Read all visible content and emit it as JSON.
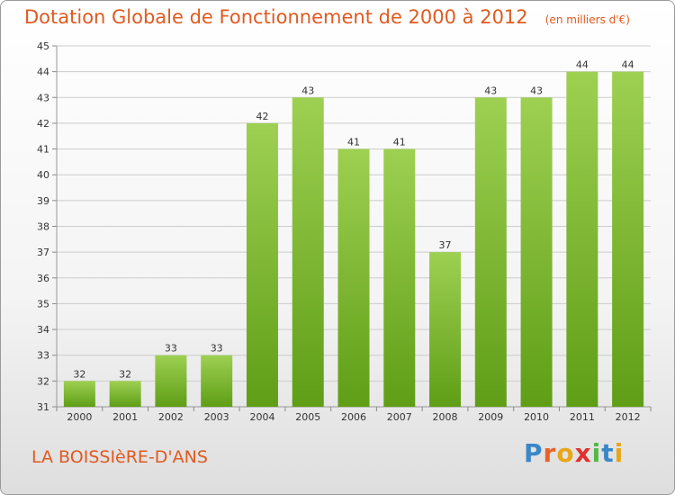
{
  "chart_data": {
    "type": "bar",
    "title": "Dotation Globale de Fonctionnement de 2000 à 2012",
    "unit_note": "(en milliers d'€)",
    "categories": [
      "2000",
      "2001",
      "2002",
      "2003",
      "2004",
      "2005",
      "2006",
      "2007",
      "2008",
      "2009",
      "2010",
      "2011",
      "2012"
    ],
    "values": [
      32,
      32,
      33,
      33,
      42,
      43,
      41,
      41,
      37,
      43,
      43,
      44,
      44
    ],
    "ylim": [
      31,
      45
    ],
    "yticks": [
      31,
      32,
      33,
      34,
      35,
      36,
      37,
      38,
      39,
      40,
      41,
      42,
      43,
      44,
      45
    ],
    "grid": true,
    "colors": {
      "bar_light": "#9ed052",
      "bar_dark": "#5f9e16",
      "grid": "#cccccc",
      "text": "#333333"
    }
  },
  "footer": {
    "commune": "LA BOISSIèRE-D'ANS",
    "logo_letters": [
      "P",
      "r",
      "o",
      "x",
      "i",
      "t",
      "i"
    ],
    "logo_colors": [
      "#3a87c8",
      "#e8632a",
      "#e8a617",
      "#e0312e",
      "#54b848",
      "#3a87c8",
      "#e8a617"
    ]
  }
}
